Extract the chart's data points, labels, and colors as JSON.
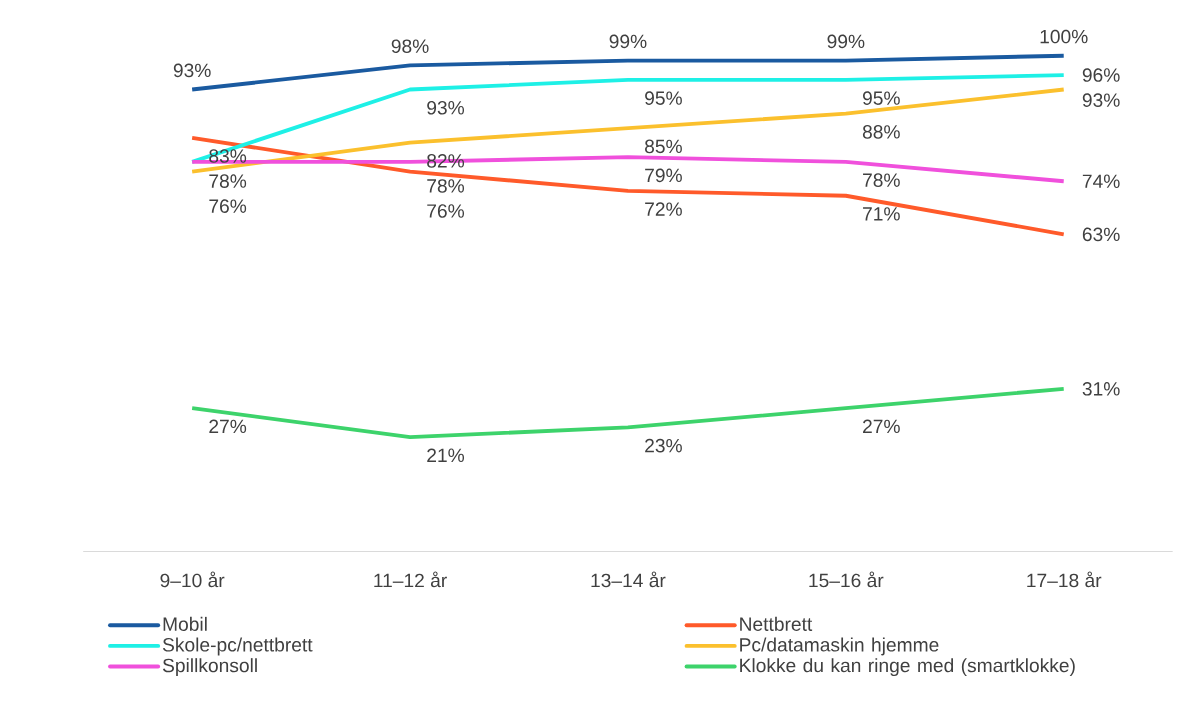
{
  "chart_data": {
    "type": "line",
    "categories": [
      "9–10 år",
      "11–12 år",
      "13–14 år",
      "15–16 år",
      "17–18 år"
    ],
    "legend": "bottom",
    "series": [
      {
        "name": "Mobil",
        "color": "#1a5aa0",
        "values": [
          93,
          98,
          99,
          99,
          100
        ],
        "value_labels": [
          "93%",
          "98%",
          "99%",
          "99%",
          "100%"
        ]
      },
      {
        "name": "Nettbrett",
        "color": "#ff5a2a",
        "values": [
          83,
          76,
          72,
          71,
          63
        ],
        "value_labels": [
          "83%",
          "76%",
          "72%",
          "71%",
          "63%"
        ]
      },
      {
        "name": "Skole-pc/nettbrett",
        "color": "#1ef0e6",
        "values": [
          78,
          93,
          95,
          95,
          96
        ],
        "value_labels": [
          "78%",
          "93%",
          "95%",
          "95%",
          "96%"
        ]
      },
      {
        "name": "Pc/datamaskin hjemme",
        "color": "#fbc02d",
        "values": [
          76,
          82,
          85,
          88,
          93
        ],
        "value_labels": [
          "76%",
          "82%",
          "85%",
          "88%",
          "93%"
        ]
      },
      {
        "name": "Spillkonsoll",
        "color": "#f050dc",
        "values": [
          78,
          78,
          79,
          78,
          74
        ],
        "value_labels": [
          null,
          "78%",
          "79%",
          "78%",
          "74%"
        ]
      },
      {
        "name": "Klokke du kan ringe med (smartklokke)",
        "color": "#3dd36b",
        "values": [
          27,
          21,
          23,
          27,
          31
        ],
        "value_labels": [
          "27%",
          "21%",
          "23%",
          "27%",
          "31%"
        ]
      }
    ]
  }
}
